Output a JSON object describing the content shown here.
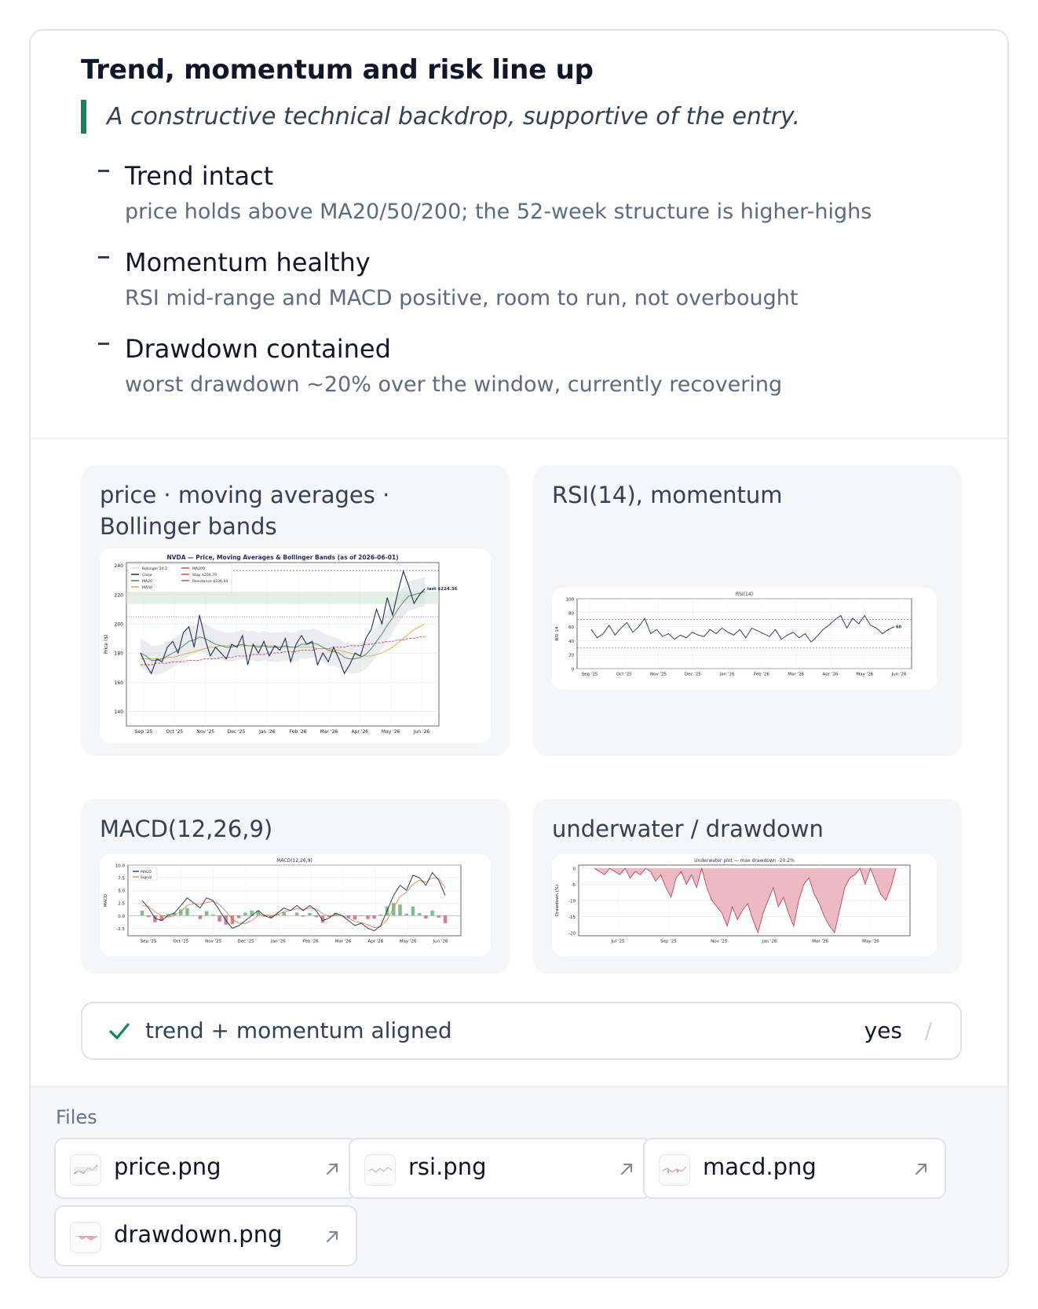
{
  "header": {
    "title": "Trend, momentum and risk line up",
    "quote": "A constructive technical backdrop, supportive of the entry."
  },
  "bullets": [
    {
      "title": "Trend intact",
      "desc": "price holds above MA20/50/200; the 52-week structure is higher-highs"
    },
    {
      "title": "Momentum healthy",
      "desc": "RSI mid-range and MACD positive, room to run, not overbought"
    },
    {
      "title": "Drawdown contained",
      "desc": "worst drawdown ~20% over the window, currently recovering"
    }
  ],
  "panels": {
    "price": {
      "title": "price · moving averages · Bollinger bands"
    },
    "rsi": {
      "title": "RSI(14), momentum"
    },
    "macd": {
      "title": "MACD(12,26,9)"
    },
    "drawdown": {
      "title": "underwater / drawdown"
    }
  },
  "status": {
    "label": "trend + momentum aligned",
    "value": "yes",
    "slash": "/"
  },
  "files": {
    "title": "Files",
    "items": [
      "price.png",
      "rsi.png",
      "macd.png",
      "drawdown.png"
    ]
  },
  "chart_data": [
    {
      "type": "line",
      "title": "NVDA — Price, Moving Averages & Bollinger Bands (as of 2026-06-01)",
      "xlabel": "",
      "ylabel": "Price ($)",
      "x_ticks": [
        "Sep '25",
        "Oct '25",
        "Nov '25",
        "Dec '25",
        "Jan '26",
        "Feb '26",
        "Mar '26",
        "Apr '26",
        "May '26",
        "Jun '26"
      ],
      "y_ticks": [
        140,
        160,
        180,
        200,
        220,
        240
      ],
      "ylim": [
        130,
        242
      ],
      "legend": [
        "Bollinger 20,2",
        "Close",
        "MA20",
        "MA50",
        "MA200",
        "Stop $204.79",
        "Resistance $236.54"
      ],
      "annotation": "last $224.36",
      "stop": 204.79,
      "resistance": 236.54,
      "grid": true,
      "series": [
        {
          "name": "Close",
          "values": [
            180,
            172,
            166,
            176,
            174,
            184,
            188,
            180,
            194,
            198,
            184,
            206,
            190,
            178,
            184,
            180,
            176,
            186,
            184,
            192,
            172,
            186,
            180,
            188,
            178,
            185,
            182,
            190,
            174,
            186,
            192,
            186,
            188,
            172,
            180,
            174,
            184,
            176,
            166,
            172,
            180,
            178,
            190,
            196,
            210,
            200,
            218,
            206,
            222,
            236,
            226,
            214,
            220,
            224
          ]
        },
        {
          "name": "MA20",
          "values": [
            180,
            178,
            175,
            175,
            176,
            178,
            180,
            182,
            185,
            188,
            189,
            191,
            190,
            188,
            186,
            185,
            184,
            184,
            185,
            186,
            185,
            185,
            184,
            185,
            184,
            184,
            184,
            185,
            184,
            184,
            186,
            186,
            187,
            186,
            184,
            182,
            181,
            180,
            177,
            176,
            176,
            177,
            179,
            183,
            188,
            193,
            199,
            204,
            210,
            215,
            219,
            220,
            221,
            222
          ]
        },
        {
          "name": "MA50",
          "values": [
            176,
            176,
            176,
            176,
            176,
            177,
            177,
            178,
            179,
            180,
            181,
            182,
            183,
            184,
            184,
            185,
            185,
            185,
            185,
            185,
            185,
            185,
            185,
            185,
            185,
            185,
            184,
            184,
            184,
            184,
            184,
            184,
            184,
            183,
            183,
            183,
            182,
            182,
            181,
            180,
            179,
            178,
            178,
            178,
            179,
            180,
            182,
            184,
            187,
            190,
            193,
            196,
            198,
            200
          ]
        },
        {
          "name": "MA200",
          "values": [
            172,
            172,
            172,
            173,
            173,
            173,
            174,
            174,
            174,
            175,
            175,
            175,
            176,
            176,
            176,
            177,
            177,
            177,
            178,
            178,
            178,
            179,
            179,
            179,
            180,
            180,
            180,
            181,
            181,
            181,
            182,
            182,
            182,
            183,
            183,
            183,
            184,
            184,
            184,
            185,
            185,
            185,
            186,
            186,
            187,
            187,
            188,
            188,
            189,
            189,
            190,
            190,
            191,
            191
          ]
        }
      ]
    },
    {
      "type": "line",
      "title": "RSI(14)",
      "ylabel": "RSI 14",
      "x_ticks": [
        "Sep '25",
        "Oct '25",
        "Nov '25",
        "Dec '25",
        "Jan '26",
        "Feb '26",
        "Mar '26",
        "Apr '26",
        "May '26",
        "Jun '26"
      ],
      "y_ticks": [
        0,
        20,
        40,
        60,
        80,
        100
      ],
      "ylim": [
        0,
        100
      ],
      "overbought": 70,
      "oversold": 30,
      "last_label": "60",
      "series": [
        {
          "name": "RSI",
          "values": [
            56,
            44,
            50,
            62,
            48,
            58,
            66,
            52,
            60,
            72,
            50,
            56,
            46,
            50,
            42,
            48,
            44,
            52,
            48,
            46,
            56,
            50,
            58,
            52,
            48,
            56,
            44,
            58,
            54,
            50,
            46,
            56,
            42,
            48,
            52,
            44,
            50,
            38,
            46,
            56,
            62,
            70,
            76,
            58,
            72,
            64,
            76,
            62,
            58,
            50,
            56,
            60
          ]
        }
      ]
    },
    {
      "type": "line",
      "title": "MACD(12,26,9)",
      "ylabel": "MACD",
      "x_ticks": [
        "Sep '25",
        "Oct '25",
        "Nov '25",
        "Dec '25",
        "Jan '26",
        "Feb '26",
        "Mar '26",
        "Apr '26",
        "May '26",
        "Jun '26"
      ],
      "y_ticks": [
        -2.5,
        0.0,
        2.5,
        5.0,
        7.5,
        10.0
      ],
      "ylim": [
        -4,
        10
      ],
      "legend": [
        "MACD",
        "Signal"
      ],
      "series": [
        {
          "name": "MACD",
          "values": [
            3,
            1.5,
            -0.5,
            -1,
            0,
            0.5,
            2,
            3.5,
            2.5,
            1.5,
            3.5,
            3,
            1,
            -1,
            -2.5,
            -2,
            -1,
            0,
            1,
            0,
            -0.5,
            0.5,
            1.5,
            1,
            2,
            1,
            2,
            1,
            -1,
            -0.5,
            0.5,
            0,
            -1,
            -2,
            -1.5,
            -2.5,
            -3,
            -2,
            1,
            4,
            6,
            5,
            8,
            7.5,
            6,
            8.5,
            7,
            4
          ]
        },
        {
          "name": "Signal",
          "values": [
            2,
            1.8,
            0.8,
            0,
            -0.3,
            0,
            0.8,
            2,
            2.4,
            2.2,
            2.6,
            2.8,
            2.2,
            0.8,
            -0.8,
            -1.5,
            -1.6,
            -1,
            0,
            0.2,
            0,
            0.2,
            0.8,
            1,
            1.4,
            1.2,
            1.5,
            1.3,
            0.4,
            -0.2,
            0,
            0,
            -0.5,
            -1.2,
            -1.4,
            -1.8,
            -2.4,
            -2.2,
            -0.8,
            1.5,
            3.8,
            4.6,
            6.2,
            7,
            6.6,
            7.5,
            7.4,
            5.5
          ]
        }
      ]
    },
    {
      "type": "area",
      "title": "Underwater plot — max drawdown -20.2%",
      "ylabel": "Drawdown (%)",
      "x_ticks": [
        "Jul '25",
        "Sep '25",
        "Nov '25",
        "Jan '26",
        "Mar '26",
        "May '26"
      ],
      "y_ticks": [
        0,
        -5,
        -10,
        -15,
        -20
      ],
      "ylim": [
        -21,
        1
      ],
      "max_drawdown": -20.2,
      "series": [
        {
          "name": "Drawdown",
          "values": [
            0,
            -1,
            -2,
            0,
            -1,
            -2,
            0,
            -3,
            -1,
            -2,
            0,
            -1,
            -4,
            -2,
            -6,
            -9,
            -3,
            -1,
            -5,
            -2,
            -6,
            0,
            -6,
            -10,
            -12,
            -14,
            -18,
            -12,
            -16,
            -13,
            -11,
            -16,
            -20,
            -14,
            -10,
            -6,
            -12,
            -9,
            -14,
            -18,
            -10,
            -5,
            -3,
            -8,
            -11,
            -15,
            -18,
            -20,
            -13,
            -6,
            -3,
            -2,
            0,
            -5,
            0,
            -4,
            -8,
            -10,
            -6,
            0
          ]
        }
      ]
    }
  ]
}
